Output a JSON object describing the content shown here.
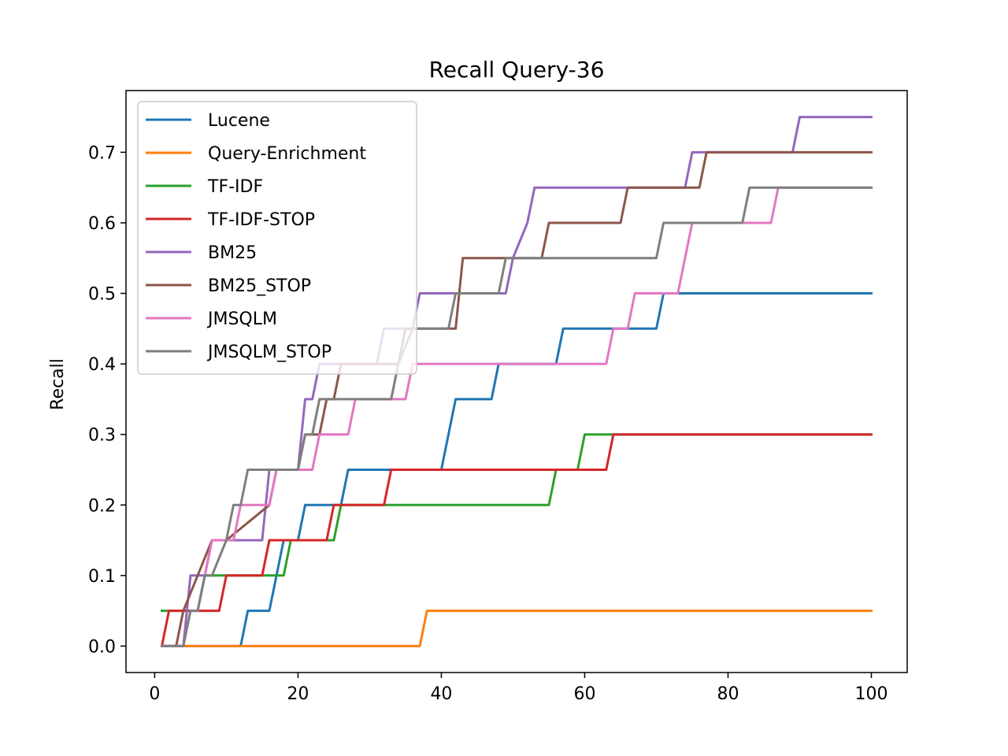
{
  "chart_data": {
    "type": "line",
    "title": "Recall Query-36",
    "xlabel": "",
    "ylabel": "Recall",
    "xlim": [
      -4,
      105
    ],
    "ylim": [
      -0.0375,
      0.7875
    ],
    "xticks": [
      0,
      20,
      40,
      60,
      80,
      100
    ],
    "xtick_labels": [
      "0",
      "20",
      "40",
      "60",
      "80",
      "100"
    ],
    "yticks": [
      0.0,
      0.1,
      0.2,
      0.3,
      0.4,
      0.5,
      0.6,
      0.7
    ],
    "ytick_labels": [
      "0.0",
      "0.1",
      "0.2",
      "0.3",
      "0.4",
      "0.5",
      "0.6",
      "0.7"
    ],
    "grid": false,
    "legend_position": "top-left",
    "series": [
      {
        "name": "Lucene",
        "color": "#1f77b4",
        "x": [
          1,
          12,
          13,
          16,
          18,
          20,
          21,
          26,
          27,
          40,
          42,
          47,
          48,
          56,
          57,
          70,
          71,
          100
        ],
        "y": [
          0,
          0,
          0.05,
          0.05,
          0.15,
          0.15,
          0.2,
          0.2,
          0.25,
          0.25,
          0.35,
          0.35,
          0.4,
          0.4,
          0.45,
          0.45,
          0.5,
          0.5
        ]
      },
      {
        "name": "Query-Enrichment",
        "color": "#ff7f0e",
        "x": [
          1,
          37,
          38,
          100
        ],
        "y": [
          0,
          0,
          0.05,
          0.05
        ]
      },
      {
        "name": "TF-IDF",
        "color": "#2ca02c",
        "x": [
          1,
          2,
          3,
          6,
          7,
          8,
          9,
          18,
          19,
          25,
          26,
          55,
          56,
          59,
          60,
          64,
          65,
          100
        ],
        "y": [
          0.05,
          0.05,
          0.05,
          0.05,
          0.1,
          0.1,
          0.1,
          0.1,
          0.15,
          0.15,
          0.2,
          0.2,
          0.25,
          0.25,
          0.3,
          0.3,
          0.3,
          0.3
        ]
      },
      {
        "name": "TF-IDF-STOP",
        "color": "#d62728",
        "x": [
          1,
          2,
          9,
          10,
          15,
          16,
          24,
          25,
          32,
          33,
          34,
          63,
          64,
          100
        ],
        "y": [
          0,
          0.05,
          0.05,
          0.1,
          0.1,
          0.15,
          0.15,
          0.2,
          0.2,
          0.25,
          0.25,
          0.25,
          0.3,
          0.3
        ]
      },
      {
        "name": "BM25",
        "color": "#9467bd",
        "x": [
          1,
          4,
          5,
          7,
          8,
          9,
          10,
          15,
          16,
          20,
          21,
          22,
          23,
          31,
          32,
          36,
          37,
          49,
          50,
          52,
          53,
          74,
          75,
          89,
          90,
          100
        ],
        "y": [
          0,
          0,
          0.1,
          0.1,
          0.15,
          0.15,
          0.15,
          0.15,
          0.25,
          0.25,
          0.35,
          0.35,
          0.4,
          0.4,
          0.45,
          0.45,
          0.5,
          0.5,
          0.55,
          0.6,
          0.65,
          0.65,
          0.7,
          0.7,
          0.75,
          0.75
        ]
      },
      {
        "name": "BM25_STOP",
        "color": "#8c564b",
        "x": [
          1,
          3,
          4,
          6,
          8,
          10,
          16,
          17,
          20,
          21,
          23,
          24,
          25,
          26,
          34,
          35,
          42,
          43,
          54,
          55,
          65,
          66,
          76,
          77,
          100
        ],
        "y": [
          0,
          0,
          0.05,
          0.1,
          0.15,
          0.15,
          0.2,
          0.25,
          0.25,
          0.3,
          0.3,
          0.35,
          0.35,
          0.4,
          0.4,
          0.45,
          0.45,
          0.55,
          0.55,
          0.6,
          0.6,
          0.65,
          0.65,
          0.7,
          0.7
        ]
      },
      {
        "name": "JMSQLM",
        "color": "#e377c2",
        "x": [
          1,
          4,
          5,
          6,
          7,
          8,
          11,
          12,
          16,
          17,
          22,
          23,
          27,
          28,
          33,
          35,
          36,
          63,
          64,
          66,
          67,
          68,
          70,
          71,
          73,
          74,
          75,
          83,
          84,
          86,
          87,
          100
        ],
        "y": [
          0,
          0,
          0.05,
          0.05,
          0.1,
          0.15,
          0.15,
          0.2,
          0.2,
          0.25,
          0.25,
          0.3,
          0.3,
          0.35,
          0.35,
          0.35,
          0.4,
          0.4,
          0.45,
          0.45,
          0.5,
          0.5,
          0.5,
          0.5,
          0.5,
          0.55,
          0.6,
          0.6,
          0.6,
          0.6,
          0.65,
          0.65
        ]
      },
      {
        "name": "JMSQLM_STOP",
        "color": "#7f7f7f",
        "x": [
          1,
          4,
          5,
          6,
          7,
          8,
          10,
          11,
          12,
          13,
          14,
          20,
          21,
          22,
          23,
          33,
          34,
          36,
          37,
          41,
          42,
          48,
          49,
          70,
          71,
          82,
          83,
          100
        ],
        "y": [
          0,
          0,
          0.05,
          0.05,
          0.1,
          0.1,
          0.15,
          0.2,
          0.2,
          0.25,
          0.25,
          0.25,
          0.3,
          0.3,
          0.35,
          0.35,
          0.4,
          0.45,
          0.45,
          0.45,
          0.5,
          0.5,
          0.55,
          0.55,
          0.6,
          0.6,
          0.65,
          0.65
        ]
      }
    ]
  }
}
